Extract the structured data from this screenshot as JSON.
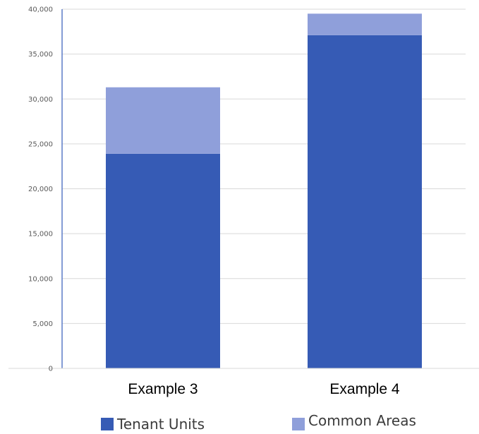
{
  "chart_data": {
    "type": "bar",
    "stacked": true,
    "categories": [
      "Example 3",
      "Example 4"
    ],
    "series": [
      {
        "name": "Tenant Units",
        "values": [
          23900,
          37100
        ],
        "color": "#365bb5"
      },
      {
        "name": "Common Areas",
        "values": [
          7400,
          2400
        ],
        "color": "#8f9fda"
      }
    ],
    "ylim": [
      0,
      40000
    ],
    "yticks": [
      0,
      5000,
      10000,
      15000,
      20000,
      25000,
      30000,
      35000,
      40000
    ],
    "ytick_labels": [
      "0",
      "5,000",
      "10,000",
      "15,000",
      "20,000",
      "25,000",
      "30,000",
      "35,000",
      "40,000"
    ],
    "grid": true,
    "legend_position": "bottom",
    "title": "",
    "xlabel": "",
    "ylabel": ""
  },
  "colors": {
    "axis_line": "#5b7bc7",
    "gridline": "#d9d9d9"
  }
}
